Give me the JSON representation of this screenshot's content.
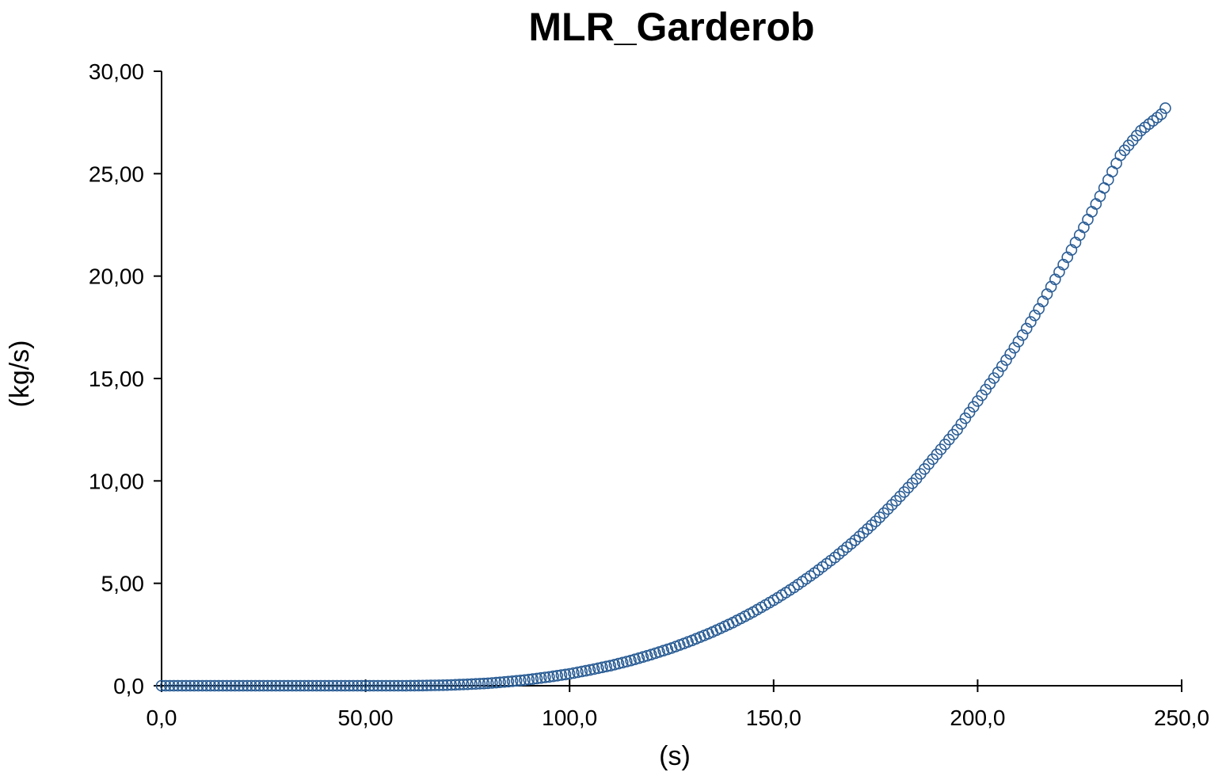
{
  "chart_data": {
    "type": "scatter",
    "title": "MLR_Garderob",
    "xlabel": "(s)",
    "ylabel": "(kg/s)",
    "xlim": [
      0,
      250
    ],
    "ylim": [
      0,
      30
    ],
    "x_ticks": [
      0,
      50,
      100,
      150,
      200,
      250
    ],
    "x_tick_labels": [
      "0,0",
      "50,00",
      "100,0",
      "150,0",
      "200,0",
      "250,0"
    ],
    "y_ticks": [
      0,
      5,
      10,
      15,
      20,
      25,
      30
    ],
    "y_tick_labels": [
      "0,0",
      "5,00",
      "10,00",
      "15,00",
      "20,00",
      "25,00",
      "30,00"
    ],
    "grid": false,
    "marker": "open-circle",
    "colors": {
      "marker": "#2a5d95",
      "axis": "#000000",
      "text": "#000000"
    },
    "series": [
      {
        "x": [
          0,
          5,
          10,
          15,
          20,
          25,
          30,
          35,
          40,
          45,
          50,
          55,
          60,
          65,
          70,
          75,
          80,
          85,
          90,
          95,
          100,
          105,
          110,
          115,
          120,
          125,
          130,
          135,
          140,
          145,
          150,
          155,
          160,
          165,
          170,
          175,
          180,
          185,
          190,
          195,
          200,
          205,
          210,
          215,
          220,
          225,
          230,
          235,
          240,
          245,
          246
        ],
        "y": [
          0.0,
          0.0,
          0.0,
          0.0,
          0.0,
          0.0,
          0.0,
          0.0,
          0.0,
          0.0,
          0.0,
          0.0,
          0.0,
          0.01,
          0.03,
          0.07,
          0.12,
          0.2,
          0.3,
          0.43,
          0.58,
          0.77,
          0.98,
          1.23,
          1.52,
          1.84,
          2.21,
          2.62,
          3.08,
          3.6,
          4.17,
          4.8,
          5.5,
          6.26,
          7.1,
          8.02,
          9.03,
          10.1,
          11.3,
          12.5,
          13.9,
          15.3,
          16.8,
          18.4,
          20.2,
          22.0,
          23.9,
          25.9,
          27.1,
          27.9,
          28.2
        ]
      }
    ]
  }
}
